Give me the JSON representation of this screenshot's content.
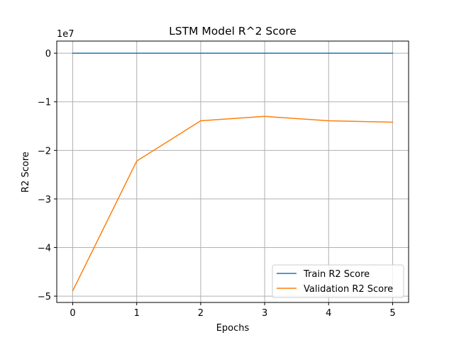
{
  "chart_data": {
    "type": "line",
    "title": "LSTM Model R^2 Score",
    "xlabel": "Epochs",
    "ylabel": "R2 Score",
    "y_offset_label": "1e7",
    "x": [
      0,
      1,
      2,
      3,
      4,
      5
    ],
    "xlim": [
      -0.25,
      5.25
    ],
    "ylim": [
      -5.13,
      0.25
    ],
    "y_scale": 10000000,
    "x_ticks": [
      0,
      1,
      2,
      3,
      4,
      5
    ],
    "y_ticks": [
      0,
      -1,
      -2,
      -3,
      -4,
      -5
    ],
    "y_tick_labels": [
      "0",
      "−1",
      "−2",
      "−3",
      "−4",
      "−5"
    ],
    "grid": true,
    "legend_position": "bottom-right",
    "series": [
      {
        "name": "Train R2 Score",
        "color": "#1f77b4",
        "values": [
          0,
          0,
          0,
          0,
          0,
          0
        ]
      },
      {
        "name": "Validation R2 Score",
        "color": "#ff7f0e",
        "values": [
          -48900000,
          -22200000,
          -13900000,
          -13000000,
          -13900000,
          -14200000
        ]
      }
    ]
  }
}
